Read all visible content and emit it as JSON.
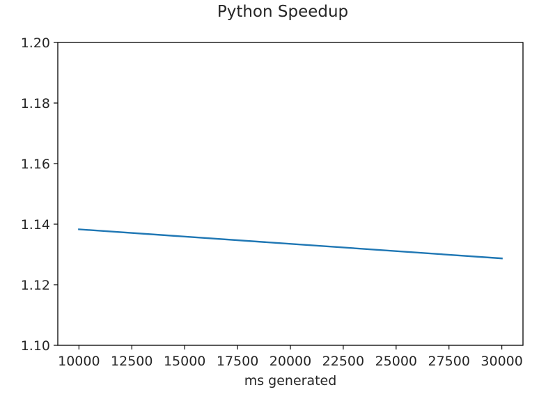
{
  "chart_data": {
    "type": "line",
    "title": "Python Speedup",
    "xlabel": "ms generated",
    "ylabel": "",
    "xlim": [
      9000,
      31000
    ],
    "ylim": [
      1.1,
      1.2
    ],
    "xticks": [
      10000,
      12500,
      15000,
      17500,
      20000,
      22500,
      25000,
      27500,
      30000
    ],
    "xtick_labels": [
      "10000",
      "12500",
      "15000",
      "17500",
      "20000",
      "22500",
      "25000",
      "27500",
      "30000"
    ],
    "yticks": [
      1.1,
      1.12,
      1.14,
      1.16,
      1.18,
      1.2
    ],
    "ytick_labels": [
      "1.10",
      "1.12",
      "1.14",
      "1.16",
      "1.18",
      "1.20"
    ],
    "grid": false,
    "series": [
      {
        "color": "#1f77b4",
        "x": [
          10000,
          30000
        ],
        "y": [
          1.1383,
          1.1287
        ]
      }
    ]
  }
}
